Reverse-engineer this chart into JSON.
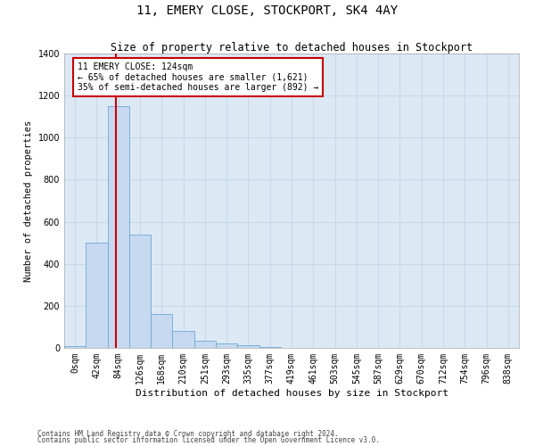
{
  "title": "11, EMERY CLOSE, STOCKPORT, SK4 4AY",
  "subtitle": "Size of property relative to detached houses in Stockport",
  "xlabel": "Distribution of detached houses by size in Stockport",
  "ylabel": "Number of detached properties",
  "footer1": "Contains HM Land Registry data © Crown copyright and database right 2024.",
  "footer2": "Contains public sector information licensed under the Open Government Licence v3.0.",
  "bar_labels": [
    "0sqm",
    "42sqm",
    "84sqm",
    "126sqm",
    "168sqm",
    "210sqm",
    "251sqm",
    "293sqm",
    "335sqm",
    "377sqm",
    "419sqm",
    "461sqm",
    "503sqm",
    "545sqm",
    "587sqm",
    "629sqm",
    "670sqm",
    "712sqm",
    "754sqm",
    "796sqm",
    "838sqm"
  ],
  "bar_values": [
    8,
    500,
    1150,
    540,
    160,
    80,
    35,
    22,
    13,
    5,
    0,
    0,
    0,
    0,
    0,
    0,
    0,
    0,
    0,
    0,
    0
  ],
  "bar_color": "#c6d9f0",
  "bar_edge_color": "#6fa8d6",
  "grid_color": "#c8d8e8",
  "background_color": "#dce9f5",
  "annotation_text_line1": "11 EMERY CLOSE: 124sqm",
  "annotation_text_line2": "← 65% of detached houses are smaller (1,621)",
  "annotation_text_line3": "35% of semi-detached houses are larger (892) →",
  "annotation_box_color": "#ffffff",
  "annotation_border_color": "#cc0000",
  "vline_color": "#cc0000",
  "vline_x": 2.38,
  "ylim": [
    0,
    1400
  ],
  "yticks": [
    0,
    200,
    400,
    600,
    800,
    1000,
    1200,
    1400
  ],
  "title_fontsize": 10,
  "subtitle_fontsize": 8.5,
  "ylabel_fontsize": 7.5,
  "xlabel_fontsize": 8,
  "tick_fontsize": 7,
  "annot_fontsize": 7,
  "footer_fontsize": 5.5
}
